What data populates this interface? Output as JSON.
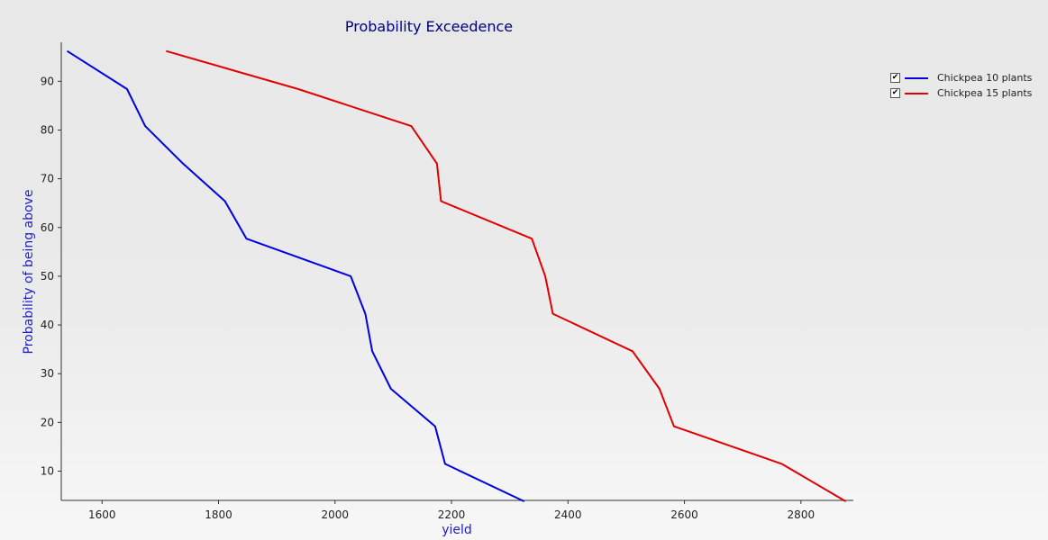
{
  "chart_data": {
    "type": "line",
    "title": "Probability Exceedence",
    "xlabel": "yield",
    "ylabel": "Probability of being above",
    "xlim": [
      1530,
      2890
    ],
    "ylim": [
      4,
      98
    ],
    "xticks": [
      1600,
      1800,
      2000,
      2200,
      2400,
      2600,
      2800
    ],
    "yticks": [
      10,
      20,
      30,
      40,
      50,
      60,
      70,
      80,
      90
    ],
    "grid": false,
    "legend_position": "top-right",
    "series": [
      {
        "name": "Chickpea 10 plants",
        "color": "#0000e0",
        "points": [
          [
            1540,
            96.2
          ],
          [
            1643,
            88.4
          ],
          [
            1674,
            80.8
          ],
          [
            1739,
            73.1
          ],
          [
            1811,
            65.4
          ],
          [
            1848,
            57.7
          ],
          [
            2027,
            50.0
          ],
          [
            2052,
            42.3
          ],
          [
            2064,
            34.6
          ],
          [
            2096,
            26.9
          ],
          [
            2172,
            19.2
          ],
          [
            2189,
            11.5
          ],
          [
            2325,
            3.8
          ]
        ]
      },
      {
        "name": "Chickpea 15 plants",
        "color": "#e00000",
        "points": [
          [
            1710,
            96.2
          ],
          [
            1937,
            88.4
          ],
          [
            2131,
            80.8
          ],
          [
            2175,
            73.1
          ],
          [
            2182,
            65.4
          ],
          [
            2338,
            57.7
          ],
          [
            2361,
            50.0
          ],
          [
            2374,
            42.3
          ],
          [
            2511,
            34.6
          ],
          [
            2557,
            26.9
          ],
          [
            2582,
            19.2
          ],
          [
            2767,
            11.5
          ],
          [
            2877,
            3.8
          ]
        ]
      }
    ]
  }
}
